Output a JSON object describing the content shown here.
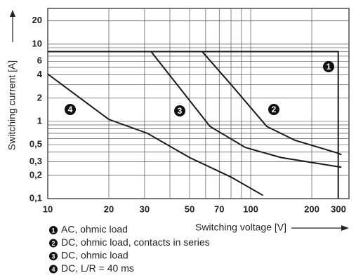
{
  "chart_data": {
    "type": "line",
    "x_label": "Switching voltage [V]",
    "y_label": "Switching current [A]",
    "xscale": "log",
    "yscale": "log",
    "xlim": [
      10,
      305
    ],
    "ylim": [
      0.1,
      29
    ],
    "xticks": [
      10,
      20,
      30,
      50,
      70,
      100,
      200,
      300
    ],
    "yticks": [
      {
        "value": 0.1,
        "label": "0,1"
      },
      {
        "value": 0.2,
        "label": "0,2"
      },
      {
        "value": 0.3,
        "label": "0,3"
      },
      {
        "value": 0.5,
        "label": "0,5"
      },
      1,
      2,
      4,
      6,
      10,
      20
    ],
    "xgrid": [
      20,
      30,
      40,
      50,
      60,
      70,
      80,
      90,
      100,
      200
    ],
    "ygrid": [
      0.2,
      0.3,
      0.4,
      0.5,
      0.6,
      0.7,
      0.8,
      0.9,
      1,
      2,
      3,
      4,
      5,
      6,
      7,
      8,
      9,
      10,
      20
    ],
    "grid": true,
    "series": [
      {
        "marker": "1",
        "name": "AC, ohmic load",
        "color": "#1a1a1a",
        "x": [
          10,
          270,
          270
        ],
        "values": [
          8,
          8,
          0.1
        ]
      },
      {
        "marker": "2",
        "name": "DC, ohmic load, contacts in series",
        "color": "#1a1a1a",
        "x": [
          57.7,
          80,
          120,
          165,
          267,
          280
        ],
        "values": [
          8,
          3.0,
          0.86,
          0.57,
          0.39,
          0.37
        ]
      },
      {
        "marker": "3",
        "name": "DC, ohmic load",
        "color": "#1a1a1a",
        "x": [
          32.3,
          46,
          63,
          94,
          141,
          267,
          280
        ],
        "values": [
          8,
          2.46,
          0.86,
          0.46,
          0.34,
          0.26,
          0.255
        ]
      },
      {
        "marker": "4",
        "name": "DC, L/R = 40 ms",
        "color": "#1a1a1a",
        "x": [
          10,
          20,
          31,
          50,
          80,
          115
        ],
        "values": [
          4.1,
          1.06,
          0.7,
          0.34,
          0.19,
          0.11
        ]
      }
    ]
  }
}
